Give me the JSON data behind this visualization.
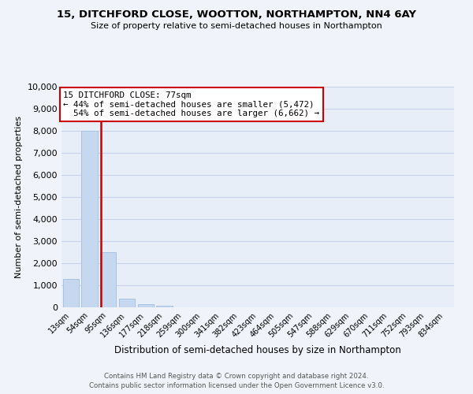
{
  "title": "15, DITCHFORD CLOSE, WOOTTON, NORTHAMPTON, NN4 6AY",
  "subtitle": "Size of property relative to semi-detached houses in Northampton",
  "xlabel": "Distribution of semi-detached houses by size in Northampton",
  "ylabel": "Number of semi-detached properties",
  "bar_labels": [
    "13sqm",
    "54sqm",
    "95sqm",
    "136sqm",
    "177sqm",
    "218sqm",
    "259sqm",
    "300sqm",
    "341sqm",
    "382sqm",
    "423sqm",
    "464sqm",
    "505sqm",
    "547sqm",
    "588sqm",
    "629sqm",
    "670sqm",
    "711sqm",
    "752sqm",
    "793sqm",
    "834sqm"
  ],
  "bar_values": [
    1300,
    8000,
    2500,
    400,
    150,
    80,
    0,
    0,
    0,
    0,
    0,
    0,
    0,
    0,
    0,
    0,
    0,
    0,
    0,
    0,
    0
  ],
  "bar_color": "#c5d8f0",
  "bar_edge_color": "#a8c4e0",
  "property_line_x": 1.62,
  "property_sqm": 77,
  "pct_smaller": 44,
  "count_smaller": 5472,
  "pct_larger": 54,
  "count_larger": 6662,
  "annotation_box_edge": "#cc0000",
  "property_line_color": "#cc0000",
  "ylim": [
    0,
    10000
  ],
  "yticks": [
    0,
    1000,
    2000,
    3000,
    4000,
    5000,
    6000,
    7000,
    8000,
    9000,
    10000
  ],
  "grid_color": "#c8d4e8",
  "background_color": "#e8eef8",
  "fig_background": "#f0f4fa",
  "footer_line1": "Contains HM Land Registry data © Crown copyright and database right 2024.",
  "footer_line2": "Contains public sector information licensed under the Open Government Licence v3.0."
}
